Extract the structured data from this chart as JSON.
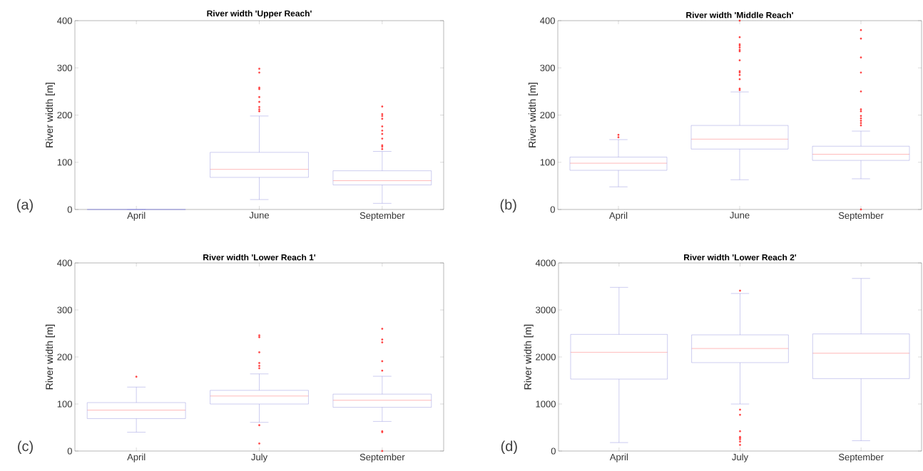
{
  "chart_data": [
    {
      "type": "box",
      "title": "River width 'Upper Reach'",
      "ylabel": "River width [m]",
      "categories": [
        "April",
        "June",
        "September"
      ],
      "ylim": [
        0,
        400
      ],
      "yticks": [
        0,
        100,
        200,
        300,
        400
      ],
      "annotations": [
        "(a)"
      ],
      "series": [
        {
          "color": "#9a9ae0",
          "boxes": [
            {
              "low": 0,
              "q1": 0,
              "median": 0,
              "q3": 0,
              "high": 0
            },
            {
              "low": 21,
              "q1": 68,
              "median": 85,
              "q3": 121,
              "high": 198,
              "outliers": [
                208,
                212,
                217,
                228,
                238,
                255,
                258,
                290,
                298
              ]
            },
            {
              "low": 13,
              "q1": 52,
              "median": 61,
              "q3": 82,
              "high": 123,
              "outliers": [
                128,
                133,
                136,
                150,
                160,
                167,
                176,
                192,
                198,
                202,
                218
              ]
            }
          ]
        }
      ]
    },
    {
      "type": "box",
      "title": "River width 'Middle Reach'",
      "ylabel": "River width [m]",
      "categories": [
        "April",
        "June",
        "September"
      ],
      "ylim": [
        0,
        400
      ],
      "yticks": [
        0,
        100,
        200,
        300,
        400
      ],
      "annotations": [
        "(b)"
      ],
      "series": [
        {
          "color": "#9a9ae0",
          "boxes": [
            {
              "low": 48,
              "q1": 83,
              "median": 98,
              "q3": 111,
              "high": 148,
              "outliers": [
                153,
                158
              ]
            },
            {
              "low": 63,
              "q1": 128,
              "median": 149,
              "q3": 178,
              "high": 249,
              "outliers": [
                253,
                256,
                276,
                285,
                290,
                293,
                316,
                335,
                338,
                343,
                347,
                350,
                365,
                400
              ]
            },
            {
              "low": 65,
              "q1": 104,
              "median": 117,
              "q3": 134,
              "high": 166,
              "outliers": [
                0,
                178,
                183,
                188,
                193,
                198,
                208,
                212,
                250,
                290,
                322,
                362,
                380
              ]
            }
          ]
        }
      ]
    },
    {
      "type": "box",
      "title": "River width 'Lower Reach 1'",
      "ylabel": "River width [m]",
      "categories": [
        "April",
        "July",
        "September"
      ],
      "ylim": [
        0,
        400
      ],
      "yticks": [
        0,
        100,
        200,
        300,
        400
      ],
      "annotations": [
        "(c)"
      ],
      "series": [
        {
          "color": "#9a9ae0",
          "boxes": [
            {
              "low": 40,
              "q1": 69,
              "median": 87,
              "q3": 103,
              "high": 136,
              "outliers": [
                158
              ]
            },
            {
              "low": 61,
              "q1": 100,
              "median": 117,
              "q3": 129,
              "high": 164,
              "outliers": [
                16,
                55,
                176,
                181,
                187,
                210,
                242,
                246
              ]
            },
            {
              "low": 63,
              "q1": 93,
              "median": 108,
              "q3": 121,
              "high": 159,
              "outliers": [
                0,
                40,
                42,
                171,
                191,
                231,
                237,
                260
              ]
            }
          ]
        }
      ]
    },
    {
      "type": "box",
      "title": "River width 'Lower Reach 2'",
      "ylabel": "River width [m]",
      "categories": [
        "April",
        "July",
        "September"
      ],
      "ylim": [
        0,
        4000
      ],
      "yticks": [
        0,
        1000,
        2000,
        3000,
        4000
      ],
      "annotations": [
        "(d)"
      ],
      "series": [
        {
          "color": "#9a9ae0",
          "boxes": [
            {
              "low": 180,
              "q1": 1530,
              "median": 2100,
              "q3": 2480,
              "high": 3480
            },
            {
              "low": 1000,
              "q1": 1880,
              "median": 2180,
              "q3": 2470,
              "high": 3350,
              "outliers": [
                130,
                200,
                250,
                280,
                300,
                420,
                770,
                880,
                3410
              ]
            },
            {
              "low": 220,
              "q1": 1540,
              "median": 2080,
              "q3": 2490,
              "high": 3670
            }
          ]
        }
      ]
    }
  ]
}
